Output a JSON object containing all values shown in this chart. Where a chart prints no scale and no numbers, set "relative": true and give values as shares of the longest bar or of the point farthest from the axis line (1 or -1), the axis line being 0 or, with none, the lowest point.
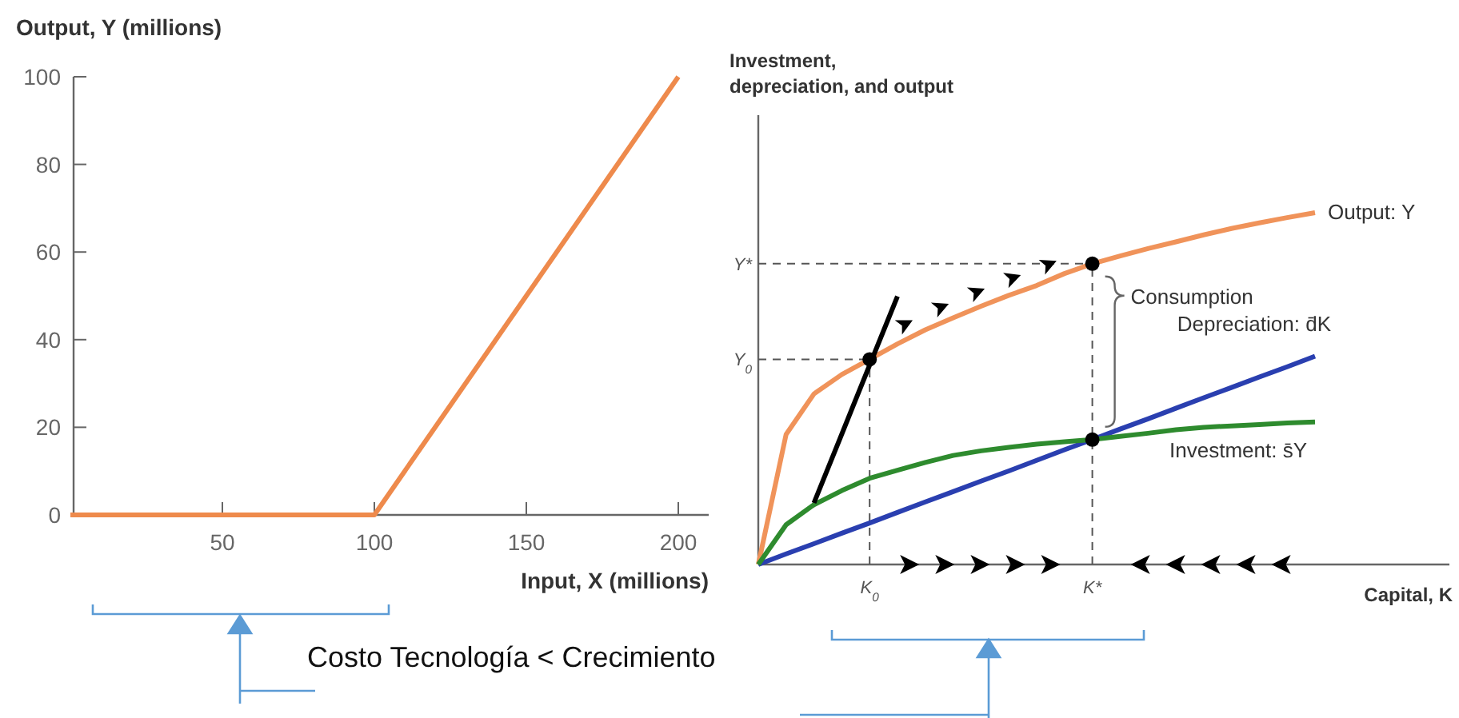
{
  "chart_data": [
    {
      "type": "line",
      "xlabel": "Input, X (millions)",
      "ylabel": "Output, Y (millions)",
      "x": [
        0,
        100,
        200
      ],
      "series": [
        {
          "color": "#ee8a4c",
          "values": [
            0,
            0,
            100
          ]
        }
      ],
      "xlim": [
        0,
        210
      ],
      "xticks": [
        50,
        100,
        150,
        200
      ],
      "ylim": [
        0,
        100
      ],
      "yticks": [
        0,
        20,
        40,
        60,
        80,
        100
      ],
      "line_style": "solid",
      "annotations": [
        "Costo Tecnología < Crecimiento"
      ]
    },
    {
      "type": "line",
      "relative": true,
      "xlabel": "Capital, K",
      "ylabel": "Investment, depreciation, and output",
      "categories": [
        null,
        null,
        null,
        null,
        "K$_{0}$",
        null,
        null,
        null,
        null,
        null,
        null,
        null,
        "K*",
        null,
        null,
        null,
        null,
        null,
        null,
        null,
        null
      ],
      "series": [
        {
          "name": "Output: Y",
          "color": "#f0935a",
          "values": [
            0,
            0.37,
            0.485,
            0.54,
            0.583,
            0.627,
            0.667,
            0.701,
            0.734,
            0.765,
            0.793,
            0.827,
            0.855,
            0.877,
            0.898,
            0.917,
            0.937,
            0.955,
            0.971,
            0.986,
            1
          ]
        },
        {
          "name": "Depreciation: d̄K",
          "color": "#2a3fb0",
          "values": [
            0,
            0.03,
            0.059,
            0.089,
            0.118,
            0.148,
            0.178,
            0.207,
            0.237,
            0.266,
            0.296,
            0.326,
            0.355,
            0.385,
            0.414,
            0.444,
            0.474,
            0.503,
            0.533,
            0.562,
            0.592
          ]
        },
        {
          "name": "Investment: s̄Y",
          "color": "#2e8b2e",
          "values": [
            0,
            0.113,
            0.17,
            0.21,
            0.245,
            0.268,
            0.29,
            0.31,
            0.323,
            0.333,
            0.342,
            0.349,
            0.355,
            0.364,
            0.373,
            0.383,
            0.39,
            0.394,
            0.398,
            0.402,
            0.405
          ]
        },
        {
          "color": "#000000",
          "values": [
            null,
            null,
            0.175,
            0.371,
            0.567,
            0.762,
            null,
            null,
            null,
            null,
            null,
            null,
            null,
            null,
            null,
            null,
            null,
            null,
            null,
            null,
            null
          ]
        },
        {
          "type": "scatter",
          "color": "#000000",
          "marker": "circle",
          "values": [
            null,
            null,
            null,
            null,
            0.583,
            null,
            null,
            null,
            null,
            null,
            null,
            null,
            0.855,
            null,
            null,
            null,
            null,
            null,
            null,
            null,
            null
          ]
        },
        {
          "type": "scatter",
          "color": "#000000",
          "marker": "circle",
          "values": [
            null,
            null,
            null,
            null,
            null,
            null,
            null,
            null,
            null,
            null,
            null,
            null,
            0.355,
            null,
            null,
            null,
            null,
            null,
            null,
            null,
            null
          ]
        }
      ],
      "line_style": "solid",
      "annotations": [
        "Y$_{0}$",
        "Y*",
        "Consumption"
      ]
    }
  ]
}
